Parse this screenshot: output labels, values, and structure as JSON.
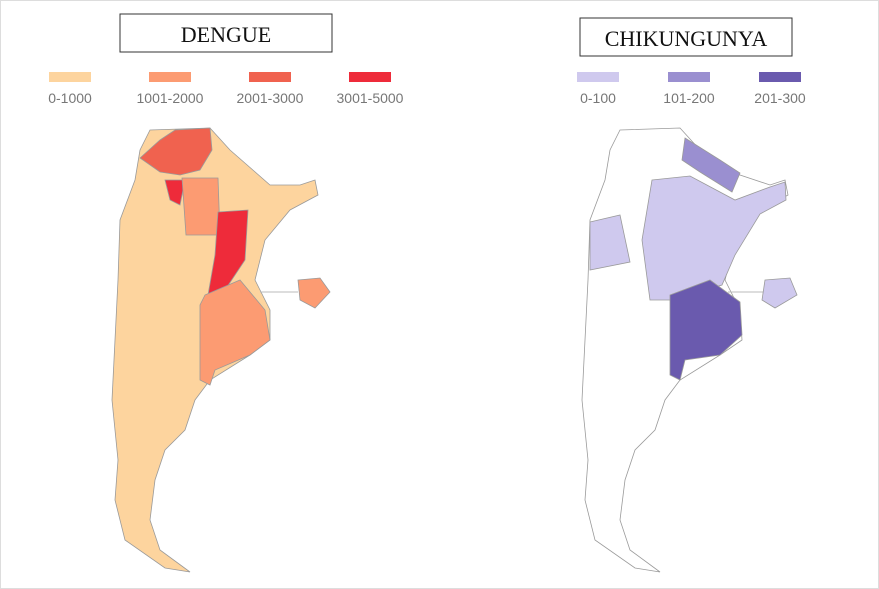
{
  "maps": [
    {
      "title": "DENGUE",
      "legend": [
        {
          "label": "0-1000",
          "color": "#fdd49e"
        },
        {
          "label": "1001-2000",
          "color": "#fc9b72"
        },
        {
          "label": "2001-3000",
          "color": "#f0624f"
        },
        {
          "label": "3001-5000",
          "color": "#ee2b3a"
        }
      ]
    },
    {
      "title": "CHIKUNGUNYA",
      "legend": [
        {
          "label": "0-100",
          "color": "#cfc9ee"
        },
        {
          "label": "101-200",
          "color": "#9a8fd0"
        },
        {
          "label": "201-300",
          "color": "#6a5aae"
        }
      ]
    }
  ]
}
